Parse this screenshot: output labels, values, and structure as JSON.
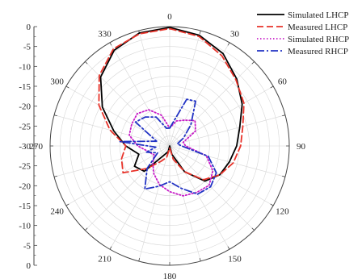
{
  "chart_data": {
    "type": "line",
    "polar": true,
    "grid": true,
    "angle_unit": "degrees",
    "radial_range": [
      -30,
      0
    ],
    "radial_ticks": [
      "0",
      "-5",
      "-10",
      "-15",
      "-20",
      "-25",
      "-30",
      "-25",
      "-20",
      "-15",
      "-10",
      "-5",
      "0"
    ],
    "angle_labels": [
      "0",
      "30",
      "60",
      "90",
      "120",
      "150",
      "180",
      "210",
      "240",
      "270",
      "300",
      "330"
    ],
    "legend_position": "top-right",
    "series": [
      {
        "name": "Simulated LHCP",
        "color": "#000000",
        "dash": "solid",
        "points": [
          [
            0,
            -0.2
          ],
          [
            15,
            -1.2
          ],
          [
            30,
            -3.2
          ],
          [
            45,
            -6.2
          ],
          [
            60,
            -9.0
          ],
          [
            75,
            -11.8
          ],
          [
            90,
            -13.2
          ],
          [
            105,
            -14.5
          ],
          [
            120,
            -15.5
          ],
          [
            135,
            -17.5
          ],
          [
            150,
            -22.5
          ],
          [
            165,
            -27.8
          ],
          [
            180,
            -30.0
          ],
          [
            195,
            -28.5
          ],
          [
            210,
            -27.5
          ],
          [
            225,
            -21.0
          ],
          [
            240,
            -19.8
          ],
          [
            255,
            -22.0
          ],
          [
            270,
            -19.0
          ],
          [
            285,
            -15.5
          ],
          [
            300,
            -10.5
          ],
          [
            315,
            -5.5
          ],
          [
            330,
            -2.2
          ],
          [
            345,
            -0.6
          ],
          [
            360,
            -0.2
          ]
        ]
      },
      {
        "name": "Measured LHCP",
        "color": "#e8332a",
        "dash": "dashed",
        "points": [
          [
            0,
            -0.5
          ],
          [
            15,
            -1.5
          ],
          [
            30,
            -3.8
          ],
          [
            45,
            -6.5
          ],
          [
            60,
            -8.5
          ],
          [
            75,
            -11.0
          ],
          [
            90,
            -12.2
          ],
          [
            105,
            -13.5
          ],
          [
            120,
            -15.5
          ],
          [
            135,
            -18.0
          ],
          [
            150,
            -22.5
          ],
          [
            165,
            -26.5
          ],
          [
            180,
            -29.5
          ],
          [
            195,
            -27.0
          ],
          [
            210,
            -25.5
          ],
          [
            225,
            -22.0
          ],
          [
            240,
            -16.5
          ],
          [
            255,
            -17.5
          ],
          [
            270,
            -19.0
          ],
          [
            285,
            -14.5
          ],
          [
            300,
            -9.5
          ],
          [
            315,
            -5.0
          ],
          [
            330,
            -1.8
          ],
          [
            345,
            -0.8
          ],
          [
            360,
            -0.5
          ]
        ]
      },
      {
        "name": "Simulated RHCP",
        "color": "#c81ec8",
        "dash": "dotted",
        "points": [
          [
            0,
            -25.5
          ],
          [
            15,
            -23.5
          ],
          [
            30,
            -22.5
          ],
          [
            45,
            -21.0
          ],
          [
            60,
            -22.5
          ],
          [
            75,
            -26.5
          ],
          [
            90,
            -26.0
          ],
          [
            105,
            -20.5
          ],
          [
            120,
            -17.5
          ],
          [
            135,
            -16.0
          ],
          [
            150,
            -16.5
          ],
          [
            165,
            -17.0
          ],
          [
            180,
            -18.5
          ],
          [
            195,
            -20.0
          ],
          [
            210,
            -22.0
          ],
          [
            225,
            -24.0
          ],
          [
            240,
            -25.5
          ],
          [
            255,
            -24.5
          ],
          [
            270,
            -22.0
          ],
          [
            285,
            -19.5
          ],
          [
            300,
            -19.0
          ],
          [
            315,
            -18.5
          ],
          [
            330,
            -19.5
          ],
          [
            345,
            -22.0
          ],
          [
            360,
            -25.5
          ]
        ]
      },
      {
        "name": "Measured RHCP",
        "color": "#2233c4",
        "dash": "dashdot",
        "points": [
          [
            0,
            -25.5
          ],
          [
            10,
            -23.5
          ],
          [
            20,
            -17.5
          ],
          [
            30,
            -17.0
          ],
          [
            45,
            -22.5
          ],
          [
            60,
            -26.0
          ],
          [
            75,
            -28.0
          ],
          [
            90,
            -27.0
          ],
          [
            105,
            -20.0
          ],
          [
            120,
            -16.5
          ],
          [
            135,
            -15.5
          ],
          [
            150,
            -16.0
          ],
          [
            165,
            -19.0
          ],
          [
            180,
            -21.0
          ],
          [
            195,
            -19.5
          ],
          [
            210,
            -17.5
          ],
          [
            225,
            -22.0
          ],
          [
            240,
            -26.5
          ],
          [
            255,
            -24.0
          ],
          [
            265,
            -26.5
          ],
          [
            275,
            -17.5
          ],
          [
            290,
            -26.5
          ],
          [
            305,
            -19.5
          ],
          [
            320,
            -20.5
          ],
          [
            335,
            -22.0
          ],
          [
            350,
            -25.5
          ],
          [
            360,
            -25.5
          ]
        ]
      }
    ]
  }
}
